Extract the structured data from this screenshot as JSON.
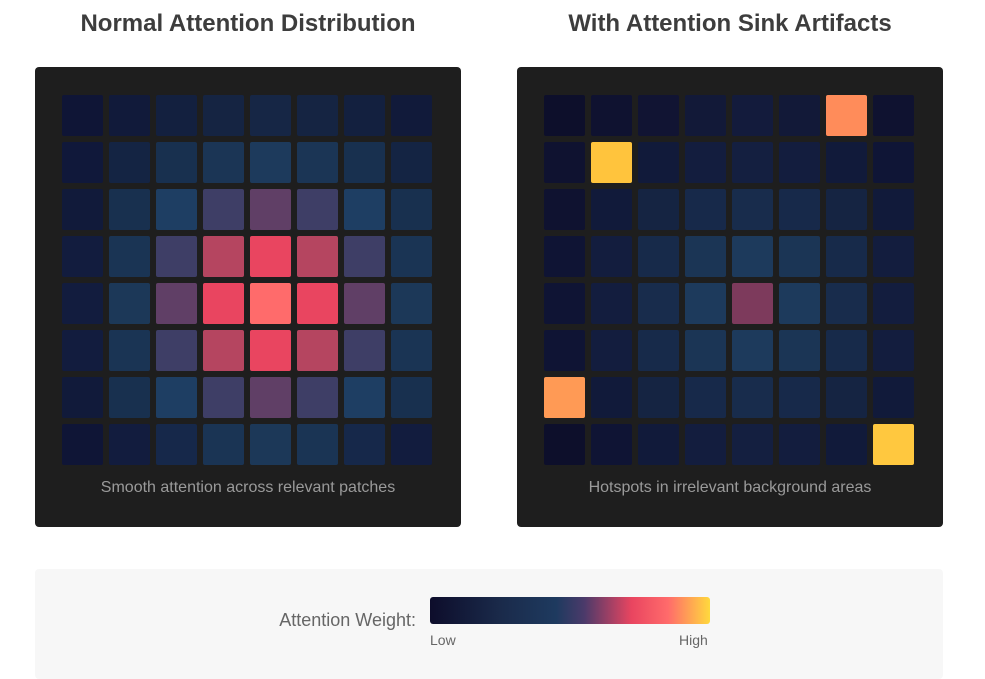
{
  "panels": [
    {
      "title": "Normal Attention Distribution",
      "caption": "Smooth attention across relevant patches",
      "cells": [
        [
          "#0f1536",
          "#111a3a",
          "#13203f",
          "#152442",
          "#162645",
          "#152442",
          "#13203f",
          "#111a3a"
        ],
        [
          "#10183a",
          "#142443",
          "#18304f",
          "#1b3555",
          "#1d3a5c",
          "#1b3555",
          "#18304f",
          "#142443"
        ],
        [
          "#111a3a",
          "#18304f",
          "#1e3e63",
          "#3e3e66",
          "#603f66",
          "#3e3e66",
          "#1e3e63",
          "#18304f"
        ],
        [
          "#121c3e",
          "#1a3454",
          "#3e3e66",
          "#b54560",
          "#e94560",
          "#b54560",
          "#3e3e66",
          "#1a3454"
        ],
        [
          "#121c3e",
          "#1c3858",
          "#603f66",
          "#e94560",
          "#ff6b6b",
          "#e94560",
          "#603f66",
          "#1c3858"
        ],
        [
          "#121c3e",
          "#1a3454",
          "#3e3e66",
          "#b54560",
          "#e94560",
          "#b54560",
          "#3e3e66",
          "#1a3454"
        ],
        [
          "#111a3a",
          "#18304f",
          "#1e3e63",
          "#3e3e66",
          "#603f66",
          "#3e3e66",
          "#1e3e63",
          "#18304f"
        ],
        [
          "#0f1536",
          "#121c3e",
          "#16284a",
          "#1a3454",
          "#1c3858",
          "#1a3454",
          "#16284a",
          "#121c3e"
        ]
      ]
    },
    {
      "title": "With Attention Sink Artifacts",
      "caption": "Hotspots in irrelevant background areas",
      "cells": [
        [
          "#0d0f2b",
          "#0f1230",
          "#111433",
          "#121938",
          "#131b3c",
          "#121938",
          "#ff8c5a",
          "#0f1230"
        ],
        [
          "#0f1230",
          "#ffc43d",
          "#111a3a",
          "#131d3e",
          "#141f40",
          "#131d3e",
          "#111a3a",
          "#0f1536"
        ],
        [
          "#0f1230",
          "#111a3a",
          "#152442",
          "#17294a",
          "#182c4c",
          "#17294a",
          "#152442",
          "#111a3a"
        ],
        [
          "#0f1434",
          "#131d3e",
          "#172a4a",
          "#1b3555",
          "#1d3a5c",
          "#1b3555",
          "#172a4a",
          "#131d3e"
        ],
        [
          "#0f1434",
          "#131d3e",
          "#182c4c",
          "#1d3a5c",
          "#7d3a5c",
          "#1d3a5c",
          "#182c4c",
          "#131d3e"
        ],
        [
          "#0f1434",
          "#131d3e",
          "#172a4a",
          "#1b3555",
          "#1d3a5c",
          "#1b3555",
          "#172a4a",
          "#131d3e"
        ],
        [
          "#ff9a55",
          "#111a3a",
          "#152442",
          "#17294a",
          "#182c4c",
          "#17294a",
          "#152442",
          "#111a3a"
        ],
        [
          "#0d0f2b",
          "#0f1434",
          "#111a3a",
          "#131d3e",
          "#141f40",
          "#131d3e",
          "#111a3a",
          "#ffc83f"
        ]
      ]
    }
  ],
  "legend": {
    "label": "Attention Weight:",
    "low": "Low",
    "high": "High"
  }
}
